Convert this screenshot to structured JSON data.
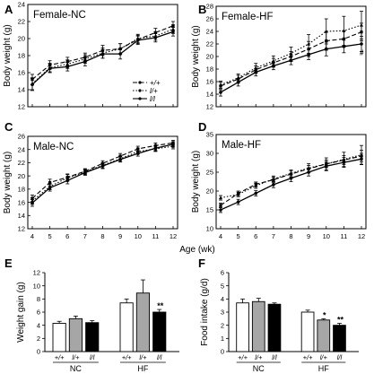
{
  "chart_data": [
    {
      "panel": "A",
      "type": "line",
      "title": "Female-NC",
      "xlabel": "",
      "ylabel": "Body weight (g)",
      "x": [
        4,
        5,
        6,
        7,
        8,
        9,
        10,
        11,
        12
      ],
      "xlim": [
        4,
        12
      ],
      "ylim": [
        12,
        24
      ],
      "yticks": [
        12,
        14,
        16,
        18,
        20,
        22,
        24
      ],
      "show_xticks": false,
      "legend": "inside lower-right",
      "series": [
        {
          "name": "+/+",
          "style": "dash",
          "values": [
            15.2,
            16.9,
            17.3,
            17.8,
            18.6,
            18.8,
            19.9,
            20.7,
            21.5
          ],
          "errors": [
            0.6,
            0.5,
            0.5,
            0.5,
            0.6,
            0.6,
            0.5,
            0.5,
            0.5
          ]
        },
        {
          "name": "l/+",
          "style": "dot",
          "values": [
            14.7,
            16.6,
            17.0,
            17.6,
            18.3,
            18.8,
            20.0,
            20.3,
            21.1
          ],
          "errors": [
            0.7,
            0.5,
            0.5,
            0.5,
            0.6,
            0.6,
            0.5,
            0.5,
            0.5
          ]
        },
        {
          "name": "l/l",
          "style": "solid",
          "values": [
            14.6,
            16.5,
            16.7,
            17.3,
            18.2,
            18.2,
            19.8,
            20.1,
            20.8
          ],
          "errors": [
            0.7,
            0.5,
            0.5,
            0.5,
            0.5,
            0.6,
            0.5,
            0.5,
            0.5
          ]
        }
      ],
      "annotations": []
    },
    {
      "panel": "B",
      "type": "line",
      "title": "Female-HF",
      "xlabel": "",
      "ylabel": "Body weight (g)",
      "x": [
        4,
        5,
        6,
        7,
        8,
        9,
        10,
        11,
        12
      ],
      "xlim": [
        4,
        12
      ],
      "ylim": [
        12,
        28
      ],
      "yticks": [
        12,
        14,
        16,
        18,
        20,
        22,
        24,
        26,
        28
      ],
      "show_xticks": false,
      "series": [
        {
          "name": "+/+",
          "style": "dash",
          "values": [
            15.3,
            16.4,
            17.9,
            19.0,
            20.0,
            21.2,
            22.5,
            22.8,
            23.9
          ],
          "errors": [
            0.6,
            0.6,
            0.6,
            0.7,
            0.8,
            1.2,
            1.5,
            1.3,
            1.4
          ]
        },
        {
          "name": "l/+",
          "style": "dot",
          "values": [
            15.5,
            16.6,
            18.2,
            19.3,
            20.5,
            22.0,
            24.0,
            24.1,
            25.0
          ],
          "errors": [
            0.6,
            0.6,
            0.7,
            0.8,
            1.0,
            1.5,
            2.0,
            2.3,
            2.2
          ]
        },
        {
          "name": "l/l",
          "style": "solid",
          "values": [
            14.3,
            15.9,
            17.5,
            18.5,
            19.4,
            20.3,
            21.2,
            21.6,
            22.0
          ],
          "errors": [
            0.6,
            0.6,
            0.6,
            0.6,
            0.7,
            0.8,
            1.1,
            1.0,
            1.2
          ]
        }
      ],
      "annotations": [
        {
          "text": "#",
          "x": 12,
          "y": 20.2
        }
      ]
    },
    {
      "panel": "C",
      "type": "line",
      "title": "Male-NC",
      "xlabel": "",
      "ylabel": "Body weight (g)",
      "x": [
        4,
        5,
        6,
        7,
        8,
        9,
        10,
        11,
        12
      ],
      "xlim": [
        4,
        12
      ],
      "ylim": [
        12,
        26
      ],
      "yticks": [
        12,
        14,
        16,
        18,
        20,
        22,
        24,
        26
      ],
      "show_xticks": false,
      "series": [
        {
          "name": "+/+",
          "style": "dash",
          "values": [
            16.6,
            19.0,
            19.8,
            20.7,
            21.9,
            23.0,
            24.1,
            24.6,
            25.0
          ],
          "errors": [
            0.5,
            0.5,
            0.5,
            0.4,
            0.4,
            0.4,
            0.4,
            0.4,
            0.4
          ]
        },
        {
          "name": "l/+",
          "style": "dot",
          "values": [
            16.2,
            18.4,
            19.7,
            20.6,
            21.6,
            22.6,
            23.7,
            24.1,
            24.5
          ],
          "errors": [
            0.5,
            0.5,
            0.5,
            0.4,
            0.4,
            0.4,
            0.4,
            0.4,
            0.4
          ]
        },
        {
          "name": "l/l",
          "style": "solid",
          "values": [
            15.9,
            18.2,
            19.3,
            20.5,
            21.5,
            22.5,
            23.4,
            24.2,
            24.8
          ],
          "errors": [
            0.5,
            0.5,
            0.5,
            0.4,
            0.4,
            0.4,
            0.4,
            0.4,
            0.4
          ]
        }
      ],
      "annotations": []
    },
    {
      "panel": "D",
      "type": "line",
      "title": "Male-HF",
      "xlabel": "Age (wk)",
      "ylabel": "Body weight (g)",
      "x": [
        4,
        5,
        6,
        7,
        8,
        9,
        10,
        11,
        12
      ],
      "xlim": [
        4,
        12
      ],
      "ylim": [
        10,
        35
      ],
      "yticks": [
        10,
        15,
        20,
        25,
        30,
        35
      ],
      "show_xticks": true,
      "series": [
        {
          "name": "+/+",
          "style": "dash",
          "values": [
            16.2,
            19.4,
            21.8,
            23.0,
            24.5,
            25.9,
            27.2,
            28.2,
            29.3
          ],
          "errors": [
            0.6,
            0.6,
            0.6,
            0.7,
            0.8,
            0.9,
            1.0,
            1.2,
            1.5
          ]
        },
        {
          "name": "l/+",
          "style": "dot",
          "values": [
            18.2,
            19.1,
            21.4,
            23.2,
            24.7,
            26.1,
            27.2,
            28.4,
            29.6
          ],
          "errors": [
            0.6,
            0.6,
            0.7,
            0.8,
            0.9,
            1.2,
            1.6,
            1.9,
            2.5
          ]
        },
        {
          "name": "l/l",
          "style": "solid",
          "values": [
            15.0,
            17.1,
            19.4,
            21.7,
            23.4,
            25.0,
            26.6,
            27.6,
            28.5
          ],
          "errors": [
            0.7,
            0.7,
            0.7,
            0.8,
            0.9,
            1.0,
            1.2,
            1.3,
            1.5
          ]
        }
      ],
      "annotations": []
    },
    {
      "panel": "E",
      "type": "bar",
      "title": "",
      "ylabel": "Weight gain (g)",
      "ylim": [
        0,
        12
      ],
      "yticks": [
        0,
        2,
        4,
        6,
        8,
        10,
        12
      ],
      "categories": [
        "+/+",
        "l/+",
        "l/l",
        "+/+",
        "l/+",
        "l/l"
      ],
      "groups": [
        "NC",
        "HF"
      ],
      "values": [
        4.3,
        5.0,
        4.4,
        7.4,
        8.9,
        6.0
      ],
      "errors": [
        0.3,
        0.4,
        0.3,
        0.6,
        2.0,
        0.4
      ],
      "fills": [
        "#ffffff",
        "#a6a6a6",
        "#000000",
        "#ffffff",
        "#a6a6a6",
        "#000000"
      ],
      "significance": [
        "",
        "",
        "",
        "",
        "",
        "**"
      ]
    },
    {
      "panel": "F",
      "type": "bar",
      "title": "",
      "ylabel": "Food intake (g/d)",
      "ylim": [
        0,
        6
      ],
      "yticks": [
        0,
        1,
        2,
        3,
        4,
        5,
        6
      ],
      "categories": [
        "+/+",
        "l/+",
        "l/l",
        "+/+",
        "l/+",
        "l/l"
      ],
      "groups": [
        "NC",
        "HF"
      ],
      "values": [
        3.7,
        3.8,
        3.6,
        3.0,
        2.4,
        2.0
      ],
      "errors": [
        0.3,
        0.25,
        0.1,
        0.15,
        0.1,
        0.15
      ],
      "fills": [
        "#ffffff",
        "#a6a6a6",
        "#000000",
        "#ffffff",
        "#a6a6a6",
        "#000000"
      ],
      "significance": [
        "",
        "",
        "",
        "",
        "*",
        "**"
      ]
    }
  ]
}
